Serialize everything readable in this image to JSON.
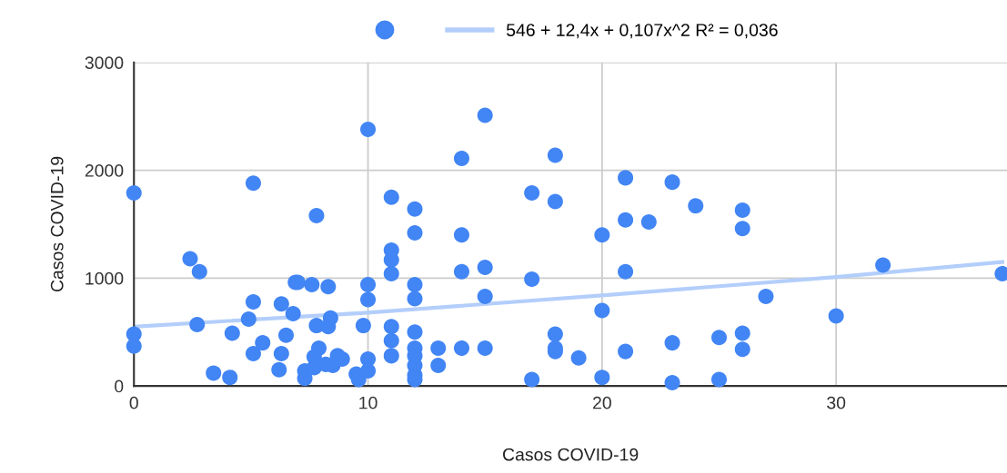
{
  "chart_data": {
    "type": "scatter",
    "xlabel": "Casos COVID-19",
    "ylabel": "Casos COVID-19",
    "xlim": [
      0,
      37.3
    ],
    "ylim": [
      0,
      3000
    ],
    "xticks": [
      0,
      10,
      20,
      30
    ],
    "yticks": [
      0,
      1000,
      2000,
      3000
    ],
    "grid": true,
    "legend": "top",
    "series": [
      {
        "color": "#4285f4",
        "marker": "circle",
        "x": [
          0,
          0,
          0,
          2.4,
          2.8,
          2.7,
          3.4,
          4.1,
          4.2,
          4.9,
          5.1,
          5.1,
          5.1,
          5.5,
          6.2,
          6.3,
          6.3,
          6.5,
          6.8,
          6.9,
          7.0,
          7.3,
          7.3,
          7.6,
          7.8,
          7.8,
          7.9,
          7.7,
          7.7,
          8.3,
          8.4,
          8.3,
          8.7,
          8.9,
          8.5,
          8.2,
          9.8,
          10,
          10,
          10,
          10,
          9.5,
          9.6,
          10,
          11,
          11,
          11,
          11,
          11,
          11,
          11,
          12,
          12,
          12,
          12,
          12,
          12,
          12,
          12,
          12,
          12,
          13,
          13,
          14,
          14,
          14,
          14,
          15,
          15,
          15,
          15,
          17,
          17,
          17,
          18,
          18,
          18,
          18,
          18,
          19,
          20,
          20,
          20,
          21,
          21,
          21,
          21,
          22,
          23,
          23,
          23,
          24,
          25,
          25,
          26,
          26,
          26,
          26,
          27,
          30,
          32,
          37.1
        ],
        "values": [
          1790,
          480,
          370,
          1180,
          1060,
          570,
          120,
          80,
          490,
          620,
          780,
          1880,
          300,
          400,
          150,
          300,
          760,
          470,
          670,
          960,
          960,
          140,
          70,
          940,
          1580,
          560,
          350,
          270,
          170,
          920,
          630,
          550,
          280,
          250,
          190,
          200,
          560,
          940,
          800,
          250,
          140,
          110,
          60,
          2380,
          1750,
          1260,
          1170,
          1040,
          550,
          420,
          280,
          1640,
          1420,
          940,
          810,
          500,
          350,
          280,
          190,
          100,
          60,
          350,
          190,
          2110,
          1400,
          1060,
          350,
          2510,
          1100,
          830,
          350,
          1790,
          990,
          60,
          2140,
          1710,
          480,
          350,
          320,
          260,
          1400,
          700,
          80,
          1930,
          1540,
          1060,
          320,
          1520,
          1890,
          400,
          30,
          1670,
          450,
          60,
          1630,
          1460,
          490,
          340,
          830,
          650,
          1120,
          1040
        ]
      },
      {
        "type": "line",
        "name": "546 + 12,4x + 0,107x^2 R² = 0,036",
        "color": "#b3cefb",
        "marker": "none",
        "x": [
          0,
          10,
          20,
          30,
          37.1
        ],
        "values": [
          550,
          680,
          840,
          1010,
          1150
        ]
      }
    ]
  }
}
